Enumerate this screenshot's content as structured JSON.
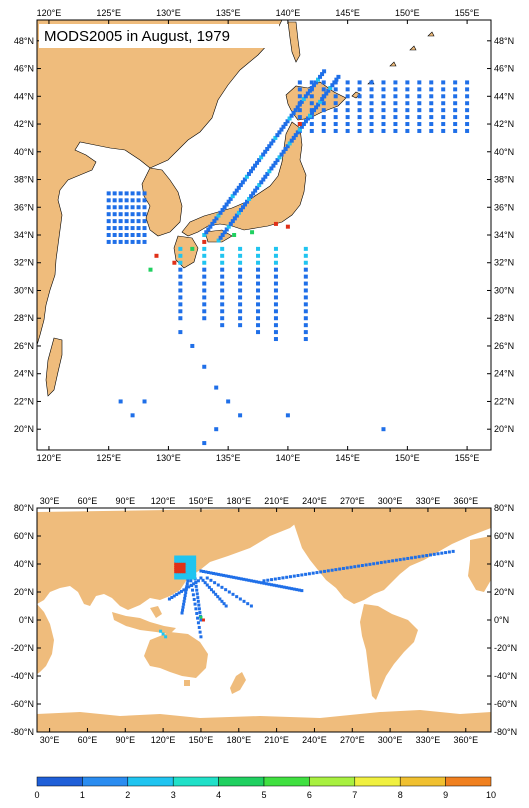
{
  "map_top": {
    "title": "MODS2005 in August, 1979",
    "lon_labels": [
      "120°E",
      "125°E",
      "130°E",
      "135°E",
      "140°E",
      "145°E",
      "150°E",
      "155°E"
    ],
    "lat_labels": [
      "48°N",
      "46°N",
      "44°N",
      "42°N",
      "40°N",
      "38°N",
      "36°N",
      "34°N",
      "32°N",
      "30°N",
      "28°N",
      "26°N",
      "24°N",
      "22°N",
      "20°N"
    ],
    "lon_range": [
      119,
      157
    ],
    "lat_range": [
      18.5,
      49.5
    ]
  },
  "map_bottom": {
    "lon_labels": [
      "30°E",
      "60°E",
      "90°E",
      "120°E",
      "150°E",
      "180°E",
      "210°E",
      "240°E",
      "270°E",
      "300°E",
      "330°E",
      "360°E"
    ],
    "lat_labels": [
      "80°N",
      "60°N",
      "40°N",
      "20°N",
      "0°N",
      "-20°N",
      "-40°N",
      "-60°N",
      "-80°N"
    ],
    "lon_range": [
      20,
      380
    ],
    "lat_range": [
      -80,
      80
    ]
  },
  "colorbar": {
    "labels": [
      "0",
      "1",
      "2",
      "3",
      "4",
      "5",
      "6",
      "7",
      "8",
      "9",
      "10"
    ],
    "colors": [
      "#1f5fd8",
      "#2a8cf0",
      "#20c4f0",
      "#20e0c8",
      "#20d060",
      "#40e040",
      "#a8f040",
      "#f0f040",
      "#f0c030",
      "#f08020",
      "#e03018"
    ]
  },
  "colors": {
    "land": "#efbc7c",
    "obs_low": "#1f6fe8",
    "obs_mid": "#20c4f0",
    "obs_high": "#e03018"
  }
}
